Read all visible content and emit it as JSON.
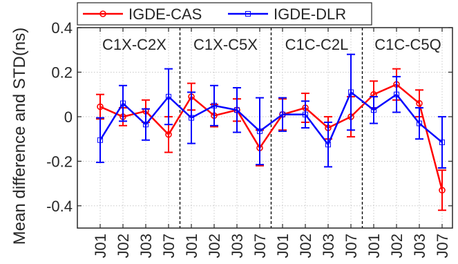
{
  "chart_data": {
    "type": "line",
    "ylabel": "Mean difference and STD(ns)",
    "ylim": [
      -0.5,
      0.4
    ],
    "yticks": [
      0.4,
      0.2,
      0,
      -0.2,
      -0.4
    ],
    "ytick_labels": [
      "0.4",
      "0.2",
      "0",
      "-0.2",
      "-0.4"
    ],
    "grid": true,
    "legend_position": "top",
    "categories": [
      "J01",
      "J02",
      "J03",
      "J07",
      "J01",
      "J02",
      "J03",
      "J07",
      "J01",
      "J02",
      "J03",
      "J07",
      "J01",
      "J02",
      "J03",
      "J07"
    ],
    "groups": [
      {
        "label": "C1X-C2X",
        "start": 0,
        "end": 3
      },
      {
        "label": "C1X-C5X",
        "start": 4,
        "end": 7
      },
      {
        "label": "C1C-C2L",
        "start": 8,
        "end": 11
      },
      {
        "label": "C1C-C5Q",
        "start": 12,
        "end": 15
      }
    ],
    "series": [
      {
        "name": "IGDE-CAS",
        "color": "#ff0000",
        "marker": "circle",
        "values": [
          0.045,
          0.0,
          0.025,
          -0.08,
          0.09,
          0.005,
          0.03,
          -0.14,
          0.01,
          0.04,
          -0.05,
          0.0,
          0.1,
          0.145,
          0.06,
          -0.33
        ],
        "std": [
          0.055,
          0.04,
          0.05,
          0.08,
          0.06,
          0.05,
          0.05,
          0.08,
          0.07,
          0.065,
          0.05,
          0.09,
          0.06,
          0.07,
          0.06,
          0.09
        ]
      },
      {
        "name": "IGDE-DLR",
        "color": "#0000ff",
        "marker": "square",
        "values": [
          -0.105,
          0.06,
          -0.035,
          0.09,
          -0.005,
          0.05,
          0.03,
          -0.065,
          0.01,
          0.01,
          -0.125,
          0.11,
          0.03,
          0.1,
          -0.03,
          -0.115
        ],
        "std": [
          0.1,
          0.08,
          0.07,
          0.125,
          0.115,
          0.09,
          0.1,
          0.15,
          0.075,
          0.06,
          0.1,
          0.17,
          0.06,
          0.08,
          0.07,
          0.115
        ]
      }
    ]
  }
}
